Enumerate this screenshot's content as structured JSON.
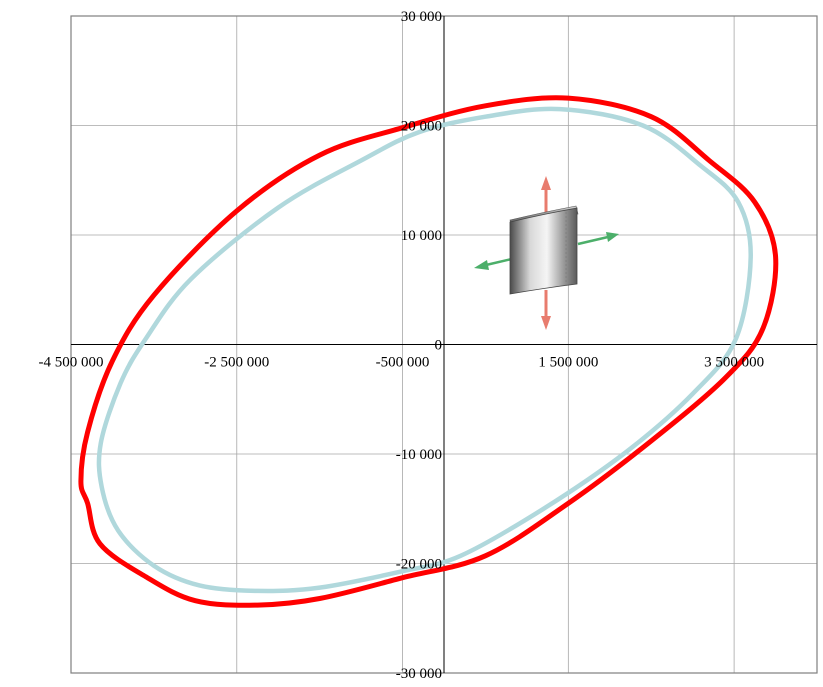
{
  "chart_data": {
    "type": "line",
    "title": "",
    "xlabel": "",
    "ylabel": "",
    "xlim": [
      -4500000,
      4500000
    ],
    "ylim": [
      -30000,
      30000
    ],
    "grid": true,
    "x_ticks": [
      {
        "value": -4500000,
        "label": "-4 500 000"
      },
      {
        "value": -2500000,
        "label": "-2 500 000"
      },
      {
        "value": -500000,
        "label": "-500 000"
      },
      {
        "value": 1500000,
        "label": "1 500 000"
      },
      {
        "value": 3500000,
        "label": "3 500 000"
      }
    ],
    "y_ticks": [
      {
        "value": 30000,
        "label": "30 000"
      },
      {
        "value": 20000,
        "label": "20 000"
      },
      {
        "value": 10000,
        "label": "10 000"
      },
      {
        "value": 0,
        "label": "0"
      },
      {
        "value": -10000,
        "label": "-10 000"
      },
      {
        "value": -20000,
        "label": "-20 000"
      },
      {
        "value": -30000,
        "label": "-30 000"
      }
    ],
    "series": [
      {
        "color": "#ff0000",
        "points": [
          [
            1500000,
            22500
          ],
          [
            2500000,
            20800
          ],
          [
            3200000,
            16800
          ],
          [
            3750000,
            13000
          ],
          [
            4000000,
            8000
          ],
          [
            3850000,
            1500
          ],
          [
            3400000,
            -3000
          ],
          [
            2500000,
            -8800
          ],
          [
            1500000,
            -14500
          ],
          [
            500000,
            -19300
          ],
          [
            -500000,
            -21300
          ],
          [
            -1500000,
            -23200
          ],
          [
            -2250000,
            -23800
          ],
          [
            -3000000,
            -23400
          ],
          [
            -3600000,
            -21200
          ],
          [
            -4150000,
            -18200
          ],
          [
            -4300000,
            -14500
          ],
          [
            -4380000,
            -12500
          ],
          [
            -4300000,
            -8000
          ],
          [
            -4000000,
            -1500
          ],
          [
            -3500000,
            4500
          ],
          [
            -2500000,
            12200
          ],
          [
            -1500000,
            17300
          ],
          [
            -500000,
            19800
          ],
          [
            500000,
            21800
          ],
          [
            1500000,
            22500
          ]
        ]
      },
      {
        "color": "#b0d8dc",
        "points": [
          [
            1400000,
            21500
          ],
          [
            2400000,
            20000
          ],
          [
            3100000,
            16300
          ],
          [
            3550000,
            13000
          ],
          [
            3700000,
            8000
          ],
          [
            3520000,
            500
          ],
          [
            3000000,
            -4500
          ],
          [
            2200000,
            -9800
          ],
          [
            1200000,
            -15000
          ],
          [
            200000,
            -19300
          ],
          [
            -500000,
            -20700
          ],
          [
            -1500000,
            -22200
          ],
          [
            -2250000,
            -22500
          ],
          [
            -2950000,
            -22000
          ],
          [
            -3500000,
            -20200
          ],
          [
            -3930000,
            -17000
          ],
          [
            -4130000,
            -13000
          ],
          [
            -4140000,
            -9000
          ],
          [
            -3900000,
            -3500
          ],
          [
            -3600000,
            500
          ],
          [
            -3050000,
            6000
          ],
          [
            -2000000,
            12500
          ],
          [
            -1000000,
            16800
          ],
          [
            -300000,
            19400
          ],
          [
            500000,
            20800
          ],
          [
            1400000,
            21500
          ]
        ]
      }
    ],
    "inset": {
      "description_icon": "bent-plate-with-stress-arrows-icon",
      "arrow_colors": {
        "vertical": "#e87c6e",
        "horizontal": "#4caf6a"
      }
    }
  }
}
